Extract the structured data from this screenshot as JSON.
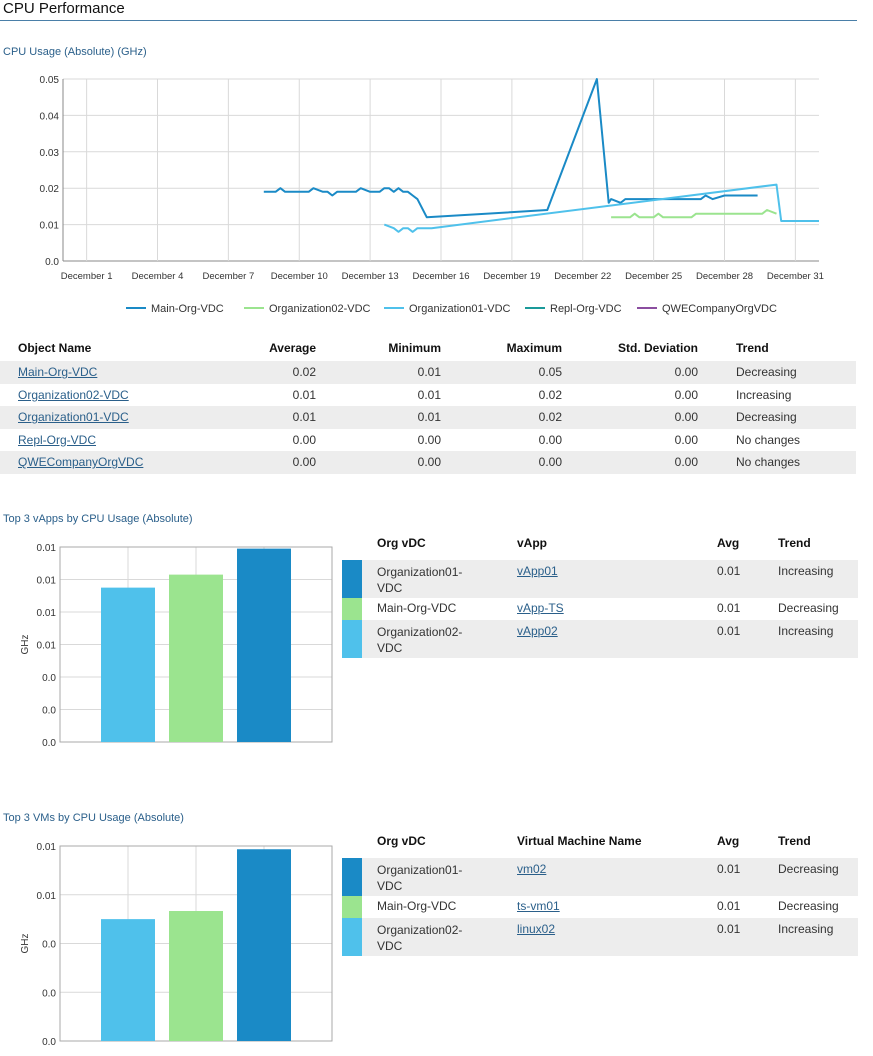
{
  "page_title": "CPU Performance",
  "colors": {
    "main_org": "#1a8ac6",
    "org02": "#9be48f",
    "org01": "#4fc1eb",
    "repl": "#1a9a9a",
    "qwe": "#8b4ea0",
    "link": "#2a5f8a",
    "section": "#2a5f8a"
  },
  "chart_data": [
    {
      "type": "line",
      "title": "CPU Usage (Absolute) (GHz)",
      "xlabel": "",
      "ylabel": "",
      "ylim": [
        0,
        0.05
      ],
      "yticks": [
        "0.0",
        "0.01",
        "0.02",
        "0.03",
        "0.04",
        "0.05"
      ],
      "xticks": [
        "December 1",
        "December 4",
        "December 7",
        "December 10",
        "December 13",
        "December 16",
        "December 19",
        "December 22",
        "December 25",
        "December 28",
        "December 31"
      ],
      "xlim": [
        0,
        32
      ],
      "grid": true,
      "legend_placement": "bottom",
      "series": [
        {
          "name": "Main-Org-VDC",
          "color": "#1a8ac6",
          "x": [
            8.5,
            9.0,
            9.2,
            9.4,
            9.6,
            10.0,
            10.4,
            10.6,
            11.0,
            11.2,
            11.4,
            11.6,
            12.0,
            12.4,
            12.6,
            13.0,
            13.2,
            13.4,
            13.6,
            13.8,
            14.0,
            14.2,
            14.4,
            14.6,
            14.8,
            15.0,
            15.4,
            20.5,
            22.6,
            23.1,
            23.2,
            23.6,
            23.8,
            24.0,
            24.5,
            25.0,
            26.0,
            27.0,
            27.2,
            27.5,
            28.0,
            28.2,
            29.4
          ],
          "y": [
            0.019,
            0.019,
            0.02,
            0.019,
            0.019,
            0.019,
            0.019,
            0.02,
            0.019,
            0.019,
            0.018,
            0.019,
            0.019,
            0.019,
            0.02,
            0.019,
            0.019,
            0.019,
            0.02,
            0.02,
            0.019,
            0.02,
            0.019,
            0.019,
            0.018,
            0.017,
            0.012,
            0.014,
            0.05,
            0.016,
            0.017,
            0.016,
            0.017,
            0.017,
            0.017,
            0.017,
            0.017,
            0.017,
            0.018,
            0.017,
            0.018,
            0.018,
            0.018
          ]
        },
        {
          "name": "Organization02-VDC",
          "color": "#9be48f",
          "x": [
            23.2,
            24.0,
            24.2,
            24.4,
            25.0,
            25.2,
            25.4,
            26.0,
            26.6,
            26.8,
            27.5,
            28.0,
            29.0,
            29.6,
            29.8,
            30.2
          ],
          "y": [
            0.012,
            0.012,
            0.013,
            0.012,
            0.012,
            0.013,
            0.012,
            0.012,
            0.012,
            0.013,
            0.013,
            0.013,
            0.013,
            0.013,
            0.014,
            0.013
          ]
        },
        {
          "name": "Organization01-VDC",
          "color": "#4fc1eb",
          "x": [
            13.6,
            14.0,
            14.2,
            14.4,
            14.6,
            14.8,
            15.0,
            15.2,
            15.6,
            30.2,
            30.4,
            32.0
          ],
          "y": [
            0.01,
            0.009,
            0.008,
            0.009,
            0.009,
            0.008,
            0.009,
            0.009,
            0.009,
            0.021,
            0.011,
            0.011
          ]
        },
        {
          "name": "Repl-Org-VDC",
          "color": "#1a9a9a",
          "x": [],
          "y": []
        },
        {
          "name": "QWECompanyOrgVDC",
          "color": "#8b4ea0",
          "x": [],
          "y": []
        }
      ]
    },
    {
      "type": "bar",
      "title": "Top 3 vApps by CPU Usage (Absolute)",
      "xlabel": "",
      "ylabel": "GHz",
      "ylim": [
        0,
        0.012
      ],
      "yticks": [
        "0.0",
        "0.0",
        "0.0",
        "0.01",
        "0.01",
        "0.01",
        "0.01"
      ],
      "grid": true,
      "categories": [
        "vApp02",
        "vApp-TS",
        "vApp01"
      ],
      "values": [
        0.0095,
        0.0103,
        0.0119
      ],
      "colors": [
        "#4fc1eb",
        "#9be48f",
        "#1a8ac6"
      ]
    },
    {
      "type": "bar",
      "title": "Top 3 VMs by CPU Usage (Absolute)",
      "xlabel": "",
      "ylabel": "GHz",
      "ylim": [
        0,
        0.012
      ],
      "yticks": [
        "0.0",
        "0.0",
        "0.0",
        "0.01",
        "0.01"
      ],
      "grid": true,
      "categories": [
        "linux02",
        "ts-vm01",
        "vm02"
      ],
      "values": [
        0.0075,
        0.008,
        0.0118
      ],
      "colors": [
        "#4fc1eb",
        "#9be48f",
        "#1a8ac6"
      ]
    }
  ],
  "stats_table": {
    "headers": [
      "Object Name",
      "Average",
      "Minimum",
      "Maximum",
      "Std. Deviation",
      "Trend"
    ],
    "rows": [
      {
        "name": "Main-Org-VDC",
        "avg": "0.02",
        "min": "0.01",
        "max": "0.05",
        "std": "0.00",
        "trend": "Decreasing"
      },
      {
        "name": "Organization02-VDC",
        "avg": "0.01",
        "min": "0.01",
        "max": "0.02",
        "std": "0.00",
        "trend": "Increasing"
      },
      {
        "name": "Organization01-VDC",
        "avg": "0.01",
        "min": "0.01",
        "max": "0.02",
        "std": "0.00",
        "trend": "Decreasing"
      },
      {
        "name": "Repl-Org-VDC",
        "avg": "0.00",
        "min": "0.00",
        "max": "0.00",
        "std": "0.00",
        "trend": "No changes"
      },
      {
        "name": "QWECompanyOrgVDC",
        "avg": "0.00",
        "min": "0.00",
        "max": "0.00",
        "std": "0.00",
        "trend": "No changes"
      }
    ]
  },
  "vapps_table": {
    "headers": [
      "Org vDC",
      "vApp",
      "Avg",
      "Trend"
    ],
    "rows": [
      {
        "color": "#1a8ac6",
        "org_line1": "Organization01-",
        "org_line2": "VDC",
        "item": "vApp01",
        "avg": "0.01",
        "trend": "Increasing"
      },
      {
        "color": "#9be48f",
        "org_line1": "Main-Org-VDC",
        "org_line2": "",
        "item": "vApp-TS",
        "avg": "0.01",
        "trend": "Decreasing"
      },
      {
        "color": "#4fc1eb",
        "org_line1": "Organization02-",
        "org_line2": "VDC",
        "item": "vApp02",
        "avg": "0.01",
        "trend": "Increasing"
      }
    ]
  },
  "vms_table": {
    "headers": [
      "Org vDC",
      "Virtual Machine Name",
      "Avg",
      "Trend"
    ],
    "rows": [
      {
        "color": "#1a8ac6",
        "org_line1": "Organization01-",
        "org_line2": "VDC",
        "item": "vm02",
        "avg": "0.01",
        "trend": "Decreasing"
      },
      {
        "color": "#9be48f",
        "org_line1": "Main-Org-VDC",
        "org_line2": "",
        "item": "ts-vm01",
        "avg": "0.01",
        "trend": "Decreasing"
      },
      {
        "color": "#4fc1eb",
        "org_line1": "Organization02-",
        "org_line2": "VDC",
        "item": "linux02",
        "avg": "0.01",
        "trend": "Increasing"
      }
    ]
  }
}
